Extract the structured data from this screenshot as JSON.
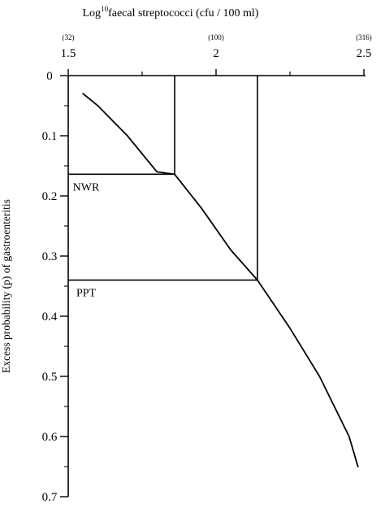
{
  "chart_data": {
    "type": "line",
    "orientation": "image-mirrored-horizontally",
    "title": "",
    "xlabel": "Log10 faecal streptococci (cfu / 100 ml)",
    "xlabel_main": "Log",
    "xlabel_sup": "10",
    "xlabel_rest": "faecal streptococci (cfu / 100 ml)",
    "ylabel": "Excess probability (p) of gastroenteritis",
    "x_axis_position": "top",
    "y_axis_position": "left",
    "xlim": [
      1.5,
      2.5
    ],
    "ylim": [
      0,
      0.7
    ],
    "x_ticks": [
      {
        "value": 1.5,
        "label": "1.5",
        "sub": "(32)"
      },
      {
        "value": 2,
        "label": "2",
        "sub": "(100)"
      },
      {
        "value": 2.5,
        "label": "2.5",
        "sub": "(316)"
      }
    ],
    "y_ticks": [
      {
        "value": 0,
        "label": "0"
      },
      {
        "value": 0.1,
        "label": "0.1"
      },
      {
        "value": 0.2,
        "label": "0.2"
      },
      {
        "value": 0.3,
        "label": "0.3"
      },
      {
        "value": 0.4,
        "label": "0.4"
      },
      {
        "value": 0.5,
        "label": "0.5"
      },
      {
        "value": 0.6,
        "label": "0.6"
      },
      {
        "value": 0.7,
        "label": "0.7"
      }
    ],
    "grid": false,
    "legend": "none",
    "series": [
      {
        "x": [
          1.55,
          1.6,
          1.65,
          1.7,
          1.75,
          1.8,
          1.86,
          1.95,
          2.05,
          2.14,
          2.25,
          2.35,
          2.45,
          2.48
        ],
        "y": [
          0.03,
          0.05,
          0.075,
          0.1,
          0.13,
          0.16,
          0.164,
          0.22,
          0.29,
          0.34,
          0.42,
          0.5,
          0.6,
          0.65
        ]
      }
    ],
    "reference_lines": [
      {
        "label": "NWR",
        "x": 1.86,
        "y": 0.164
      },
      {
        "label": "PPT",
        "x": 2.14,
        "y": 0.34
      }
    ]
  }
}
